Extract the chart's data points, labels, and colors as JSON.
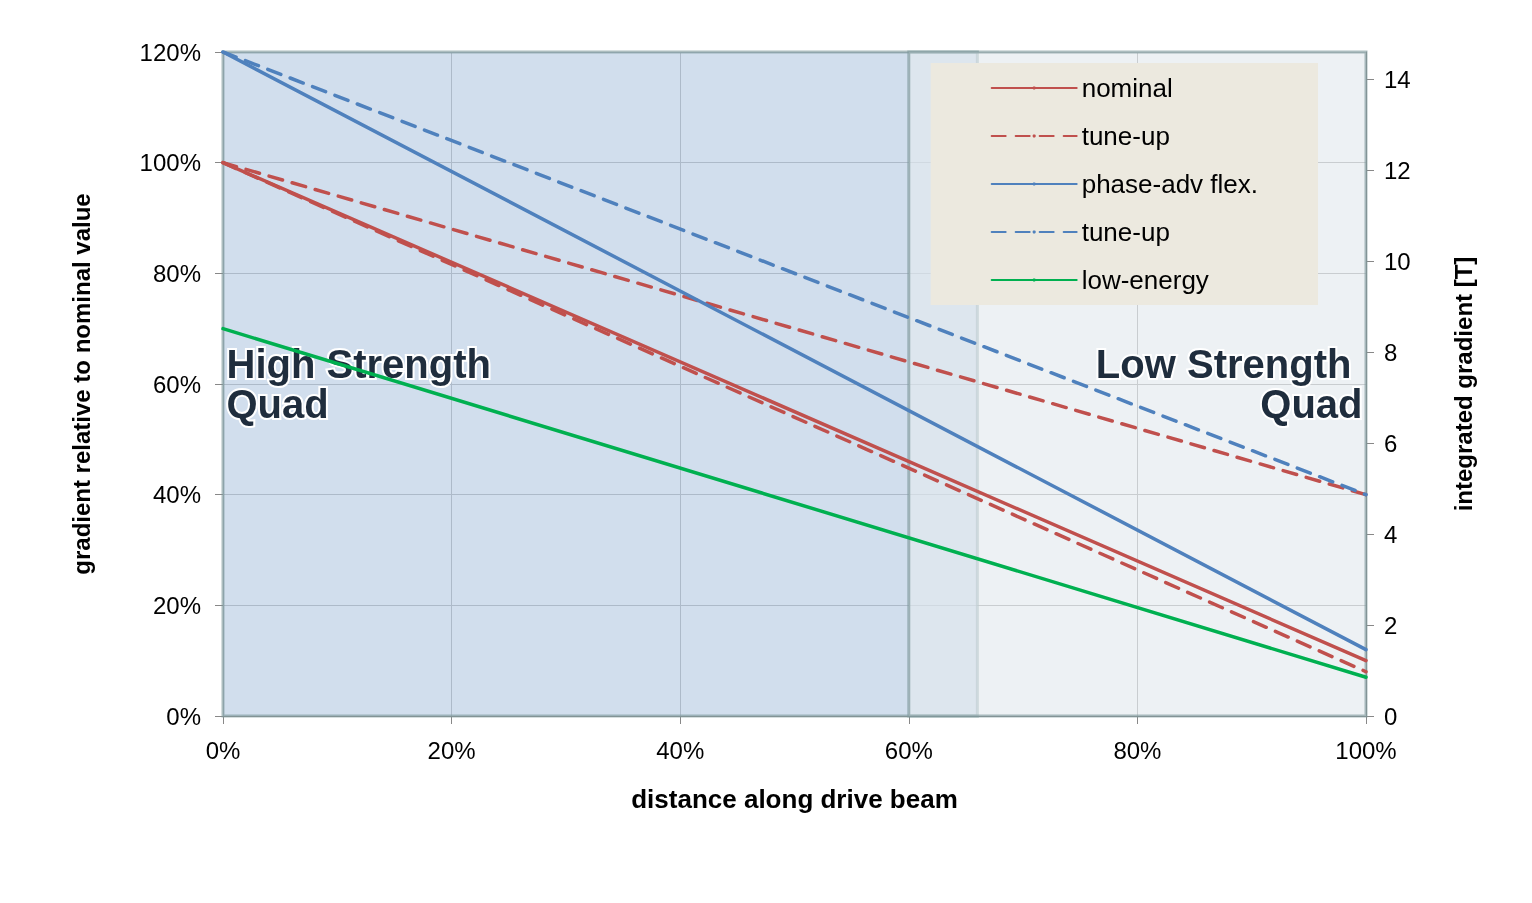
{
  "chart_data": {
    "type": "line",
    "xlabel": "distance along drive beam",
    "ylabel": "gradient relative to nominal value",
    "y2label": "integrated gradient [T]",
    "x": [
      0,
      100
    ],
    "series": [
      {
        "name": "nominal",
        "color": "#c0504d",
        "values": [
          100,
          10
        ],
        "line_style": "solid"
      },
      {
        "name": "tune-up",
        "color": "#c0504d",
        "values": [
          100,
          40
        ],
        "line_style": "dashed"
      },
      {
        "name": "phase-adv flex.",
        "color": "#4f81bd",
        "values": [
          120,
          12
        ],
        "line_style": "solid"
      },
      {
        "name": "tune-up",
        "color": "#4f81bd",
        "values": [
          120,
          40
        ],
        "line_style": "dashed"
      },
      {
        "name": "low-energy",
        "color": "#00b050",
        "values": [
          70,
          7
        ],
        "line_style": "solid"
      },
      {
        "color": "#c0504d",
        "values": [
          100,
          8
        ],
        "line_style": "dashed"
      }
    ],
    "xlim": [
      0,
      100
    ],
    "xticks": [
      {
        "value": 0,
        "label": "0%"
      },
      {
        "value": 20,
        "label": "20%"
      },
      {
        "value": 40,
        "label": "40%"
      },
      {
        "value": 60,
        "label": "60%"
      },
      {
        "value": 80,
        "label": "80%"
      },
      {
        "value": 100,
        "label": "100%"
      }
    ],
    "ylim": [
      0,
      120
    ],
    "yticks": [
      {
        "value": 0,
        "label": "0%"
      },
      {
        "value": 20,
        "label": "20%"
      },
      {
        "value": 40,
        "label": "40%"
      },
      {
        "value": 60,
        "label": "60%"
      },
      {
        "value": 80,
        "label": "80%"
      },
      {
        "value": 100,
        "label": "100%"
      },
      {
        "value": 120,
        "label": "120%"
      }
    ],
    "y2lim": [
      0,
      14.6
    ],
    "y2ticks": [
      0,
      2,
      4,
      6,
      8,
      10,
      12,
      14
    ],
    "bands": [
      {
        "axis": "x",
        "from": 0,
        "to": 66,
        "label": "High Strength Quad",
        "color": "#b8cce4"
      },
      {
        "axis": "x",
        "from": 60,
        "to": 100,
        "label": "Low Strength Quad",
        "color": "#e4e9ee"
      }
    ],
    "grid": true,
    "legend": "top right",
    "marker": "none"
  }
}
